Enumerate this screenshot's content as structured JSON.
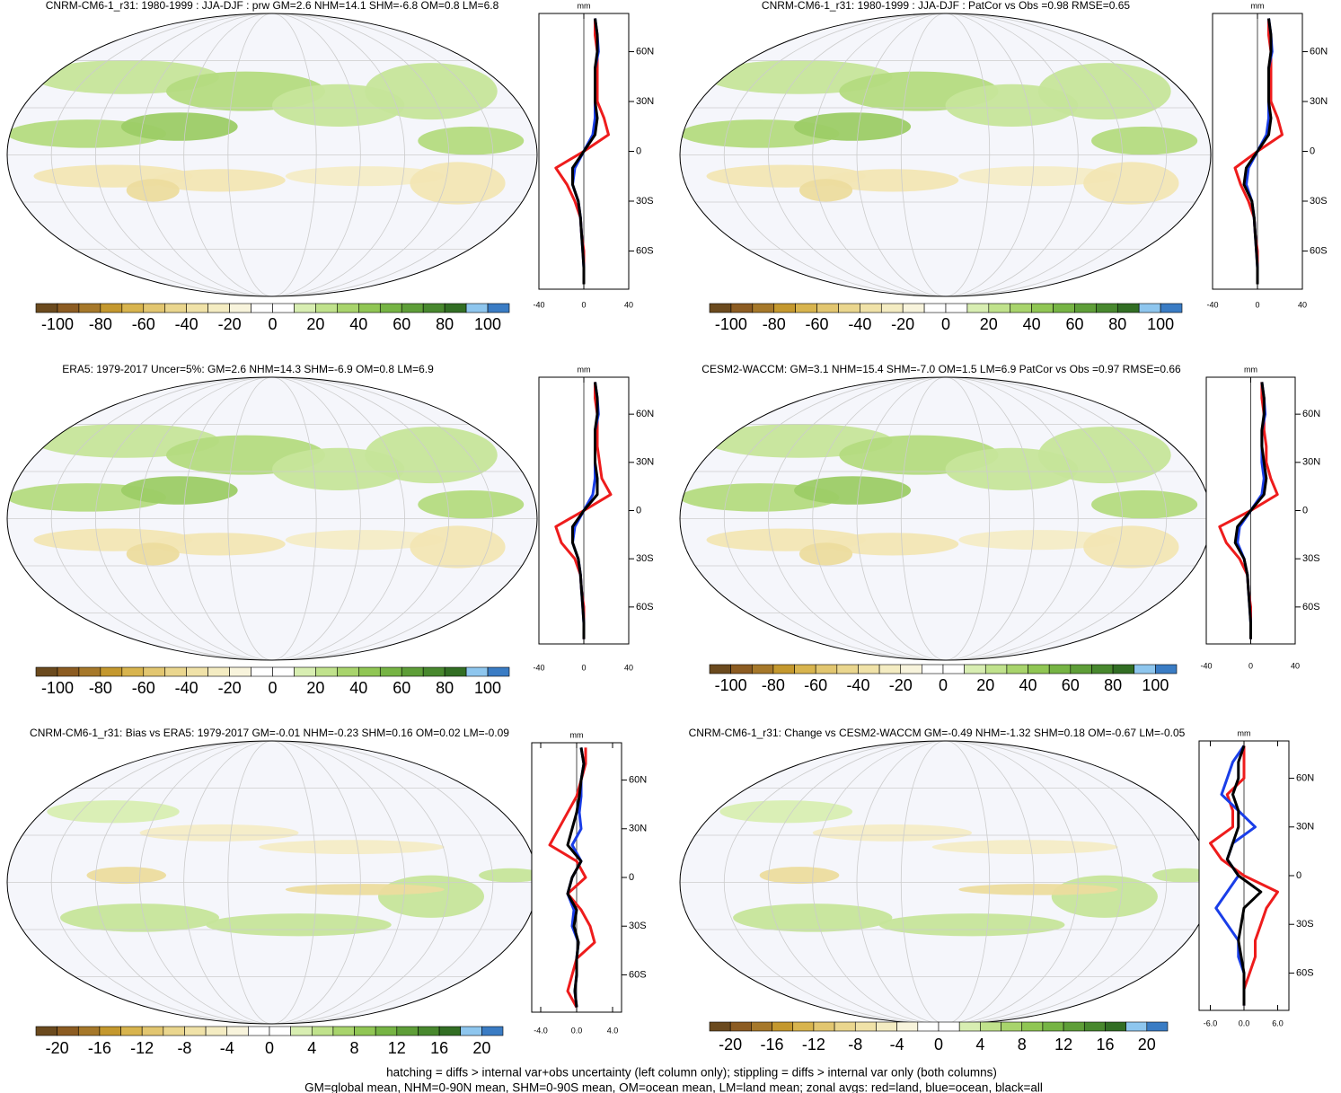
{
  "colorbar_colors": [
    "#6b4a1e",
    "#8c5c22",
    "#a6782a",
    "#c4982e",
    "#d8b44e",
    "#e2c670",
    "#ead68e",
    "#f0e2a8",
    "#f4ecc2",
    "#f8f4dc",
    "#ffffff",
    "#ffffff",
    "#d8eeb2",
    "#c0e28c",
    "#a8d46c",
    "#90c654",
    "#76b444",
    "#5e9e38",
    "#48882e",
    "#326e24",
    "#8ec6ee",
    "#3a7cc4"
  ],
  "panels": [
    {
      "title": "CNRM-CM6-1_r31: 1980-1999 : JJA-DJF : prw GM=2.6 NHM=14.1 SHM=-6.8 OM=0.8 LM=6.8",
      "colorbar": {
        "lim": [
          -110,
          110
        ],
        "ticks": [
          -100,
          -80,
          -60,
          -40,
          -20,
          0,
          20,
          40,
          60,
          80,
          100
        ]
      },
      "zonal": {
        "unit": "mm",
        "xlim": [
          -40,
          40
        ],
        "xticks": [
          -40,
          0,
          40
        ],
        "ylim": [
          -83,
          83
        ],
        "yticks": [
          {
            "value": 60,
            "label": "60N"
          },
          {
            "value": 30,
            "label": "30N"
          },
          0,
          {
            "value": -30,
            "label": "30S"
          },
          {
            "value": -60,
            "label": "60S"
          }
        ],
        "lat": [
          80,
          70,
          60,
          50,
          40,
          30,
          20,
          10,
          0,
          -10,
          -20,
          -30,
          -40,
          -50,
          -60,
          -70,
          -80
        ],
        "series": [
          {
            "color": "#ee1c1c",
            "values": [
              10,
              10,
              12,
              12,
              12,
              12,
              18,
              22,
              0,
              -25,
              -15,
              -8,
              -3,
              -2,
              0,
              0,
              0
            ]
          },
          {
            "color": "#1a3ee8",
            "values": [
              10,
              12,
              13,
              10,
              10,
              10,
              10,
              8,
              0,
              -8,
              -10,
              -5,
              -3,
              -2,
              -1,
              0,
              0
            ]
          },
          {
            "color": "#000000",
            "values": [
              10,
              12,
              12,
              10,
              10,
              10,
              12,
              10,
              0,
              -10,
              -10,
              -5,
              -3,
              -2,
              -1,
              0,
              0
            ]
          }
        ]
      }
    },
    {
      "title": "CNRM-CM6-1_r31: 1980-1999 : JJA-DJF : PatCor vs Obs =0.98 RMSE=0.65",
      "colorbar": {
        "lim": [
          -110,
          110
        ],
        "ticks": [
          -100,
          -80,
          -60,
          -40,
          -20,
          0,
          20,
          40,
          60,
          80,
          100
        ]
      },
      "zonal": {
        "unit": "mm",
        "xlim": [
          -40,
          40
        ],
        "xticks": [
          -40,
          0,
          40
        ],
        "ylim": [
          -83,
          83
        ],
        "yticks": [
          {
            "value": 60,
            "label": "60N"
          },
          {
            "value": 30,
            "label": "30N"
          },
          0,
          {
            "value": -30,
            "label": "30S"
          },
          {
            "value": -60,
            "label": "60S"
          }
        ],
        "lat": [
          80,
          70,
          60,
          50,
          40,
          30,
          20,
          10,
          0,
          -10,
          -20,
          -30,
          -40,
          -50,
          -60,
          -70,
          -80
        ],
        "series": [
          {
            "color": "#ee1c1c",
            "values": [
              10,
              10,
              12,
              12,
              12,
              12,
              18,
              22,
              0,
              -20,
              -15,
              -8,
              -3,
              -2,
              0,
              0,
              0
            ]
          },
          {
            "color": "#1a3ee8",
            "values": [
              10,
              12,
              13,
              10,
              10,
              10,
              10,
              8,
              0,
              -8,
              -10,
              -5,
              -3,
              -2,
              -1,
              0,
              0
            ]
          },
          {
            "color": "#000000",
            "values": [
              10,
              12,
              12,
              10,
              10,
              10,
              12,
              10,
              0,
              -10,
              -12,
              -5,
              -3,
              -2,
              -1,
              0,
              0
            ]
          }
        ]
      }
    },
    {
      "title": "ERA5: 1979-2017 Uncer=5%: GM=2.6 NHM=14.3 SHM=-6.9 OM=0.8 LM=6.9",
      "colorbar": {
        "lim": [
          -110,
          110
        ],
        "ticks": [
          -100,
          -80,
          -60,
          -40,
          -20,
          0,
          20,
          40,
          60,
          80,
          100
        ]
      },
      "zonal": {
        "unit": "mm",
        "xlim": [
          -40,
          40
        ],
        "xticks": [
          -40,
          0,
          40
        ],
        "ylim": [
          -83,
          83
        ],
        "yticks": [
          {
            "value": 60,
            "label": "60N"
          },
          {
            "value": 30,
            "label": "30N"
          },
          0,
          {
            "value": -30,
            "label": "30S"
          },
          {
            "value": -60,
            "label": "60S"
          }
        ],
        "lat": [
          80,
          70,
          60,
          50,
          40,
          30,
          20,
          10,
          0,
          -10,
          -20,
          -30,
          -40,
          -50,
          -60,
          -70,
          -80
        ],
        "series": [
          {
            "color": "#ee1c1c",
            "values": [
              10,
              10,
              12,
              12,
              12,
              14,
              16,
              24,
              0,
              -25,
              -20,
              -8,
              -3,
              -2,
              0,
              0,
              0
            ]
          },
          {
            "color": "#1a3ee8",
            "values": [
              10,
              12,
              13,
              10,
              10,
              10,
              10,
              8,
              0,
              -8,
              -10,
              -5,
              -3,
              -2,
              -1,
              0,
              0
            ]
          },
          {
            "color": "#000000",
            "values": [
              10,
              12,
              12,
              10,
              10,
              10,
              12,
              12,
              0,
              -10,
              -10,
              -5,
              -3,
              -2,
              -1,
              0,
              0
            ]
          }
        ]
      }
    },
    {
      "title": "CESM2-WACCM: GM=3.1 NHM=15.4 SHM=-7.0 OM=1.5 LM=6.9 PatCor vs Obs =0.97 RMSE=0.66",
      "colorbar": {
        "lim": [
          -110,
          110
        ],
        "ticks": [
          -100,
          -80,
          -60,
          -40,
          -20,
          0,
          20,
          40,
          60,
          80,
          100
        ]
      },
      "zonal": {
        "unit": "mm",
        "xlim": [
          -40,
          40
        ],
        "xticks": [
          -40,
          0,
          40
        ],
        "ylim": [
          -83,
          83
        ],
        "yticks": [
          {
            "value": 60,
            "label": "60N"
          },
          {
            "value": 30,
            "label": "30N"
          },
          0,
          {
            "value": -30,
            "label": "30S"
          },
          {
            "value": -60,
            "label": "60S"
          }
        ],
        "lat": [
          80,
          70,
          60,
          50,
          40,
          30,
          20,
          10,
          0,
          -10,
          -20,
          -30,
          -40,
          -50,
          -60,
          -70,
          -80
        ],
        "series": [
          {
            "color": "#ee1c1c",
            "values": [
              10,
              10,
              12,
              12,
              14,
              14,
              18,
              24,
              0,
              -28,
              -22,
              -10,
              -3,
              -2,
              0,
              0,
              0
            ]
          },
          {
            "color": "#1a3ee8",
            "values": [
              10,
              12,
              13,
              10,
              10,
              10,
              12,
              10,
              0,
              -10,
              -12,
              -6,
              -3,
              -2,
              -1,
              0,
              0
            ]
          },
          {
            "color": "#000000",
            "values": [
              10,
              12,
              12,
              10,
              10,
              12,
              14,
              12,
              0,
              -12,
              -14,
              -6,
              -3,
              -2,
              -1,
              0,
              0
            ]
          }
        ]
      }
    },
    {
      "title": "CNRM-CM6-1_r31: Bias vs ERA5: 1979-2017 GM=-0.01 NHM=-0.23 SHM=0.16 OM=0.02 LM=-0.09",
      "colorbar": {
        "lim": [
          -22,
          22
        ],
        "ticks": [
          -20,
          -16,
          -12,
          -8,
          -4,
          0,
          4,
          8,
          12,
          16,
          20
        ]
      },
      "zonal": {
        "unit": "mm",
        "xlim": [
          -5,
          5
        ],
        "xticks": [
          {
            "value": -4,
            "label": "-4.0"
          },
          {
            "value": 0,
            "label": "0.0"
          },
          {
            "value": 4,
            "label": "4.0"
          }
        ],
        "ylim": [
          -83,
          83
        ],
        "yticks": [
          {
            "value": 60,
            "label": "60N"
          },
          {
            "value": 30,
            "label": "30N"
          },
          0,
          {
            "value": -30,
            "label": "30S"
          },
          {
            "value": -60,
            "label": "60S"
          }
        ],
        "lat": [
          80,
          70,
          60,
          50,
          40,
          30,
          20,
          10,
          0,
          -10,
          -20,
          -30,
          -40,
          -50,
          -60,
          -70,
          -80
        ],
        "series": [
          {
            "color": "#ee1c1c",
            "values": [
              1,
              1,
              0.5,
              0,
              -1,
              -2,
              -3,
              0,
              1,
              -1,
              0.5,
              1.5,
              2,
              0,
              -0.5,
              -1,
              0
            ]
          },
          {
            "color": "#1a3ee8",
            "values": [
              0.5,
              0.8,
              0.5,
              0.5,
              0.3,
              0.5,
              -0.5,
              0.5,
              -0.5,
              -1,
              -0.3,
              -0.5,
              0.2,
              0,
              0,
              -0.2,
              0
            ]
          },
          {
            "color": "#000000",
            "values": [
              0.5,
              0.8,
              0.5,
              0.3,
              0,
              -0.5,
              -1,
              0.5,
              -0.5,
              -1,
              0,
              -0.3,
              0.2,
              0,
              0,
              -0.2,
              0
            ]
          }
        ]
      }
    },
    {
      "title": "CNRM-CM6-1_r31: Change vs CESM2-WACCM GM=-0.49 NHM=-1.32 SHM=0.18 OM=-0.67 LM=-0.05",
      "colorbar": {
        "lim": [
          -22,
          22
        ],
        "ticks": [
          -20,
          -16,
          -12,
          -8,
          -4,
          0,
          4,
          8,
          12,
          16,
          20
        ]
      },
      "zonal": {
        "unit": "mm",
        "xlim": [
          -8,
          8
        ],
        "xticks": [
          {
            "value": -6,
            "label": "-6.0"
          },
          {
            "value": 0,
            "label": "0.0"
          },
          {
            "value": 6,
            "label": "6.0"
          }
        ],
        "ylim": [
          -83,
          83
        ],
        "yticks": [
          {
            "value": 60,
            "label": "60N"
          },
          {
            "value": 30,
            "label": "30N"
          },
          0,
          {
            "value": -30,
            "label": "30S"
          },
          {
            "value": -60,
            "label": "60S"
          }
        ],
        "lat": [
          80,
          70,
          60,
          50,
          40,
          30,
          20,
          10,
          0,
          -10,
          -20,
          -30,
          -40,
          -50,
          -60,
          -70,
          -80
        ],
        "series": [
          {
            "color": "#ee1c1c",
            "values": [
              0,
              0,
              0,
              -3,
              -2,
              -2,
              -6,
              -4,
              0,
              6,
              4,
              3,
              2,
              2,
              1,
              0,
              0
            ]
          },
          {
            "color": "#1a3ee8",
            "values": [
              0,
              -2,
              -3,
              -4,
              -1,
              2,
              -2,
              -3,
              -1,
              -3,
              -5,
              -3,
              -1,
              -1,
              0,
              0,
              0
            ]
          },
          {
            "color": "#000000",
            "values": [
              0,
              -1,
              -1,
              -2,
              -1,
              -1,
              -2,
              -3,
              -1,
              3,
              0,
              -0.5,
              -1,
              -0.5,
              0,
              0,
              0
            ]
          }
        ]
      }
    }
  ],
  "footer": [
    "hatching = diffs > internal var+obs uncertainty (left column only); stippling = diffs > internal var only (both columns)",
    "GM=global mean, NHM=0-90N mean, SHM=0-90S mean, OM=ocean mean, LM=land mean; zonal avgs: red=land, blue=ocean, black=all"
  ]
}
